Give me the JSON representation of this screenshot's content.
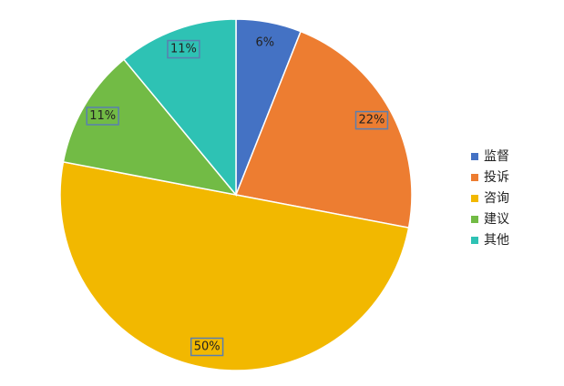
{
  "chart_data": {
    "type": "pie",
    "categories": [
      "监督",
      "投诉",
      "咨询",
      "建议",
      "其他"
    ],
    "values": [
      6,
      22,
      50,
      11,
      11
    ],
    "value_labels": [
      "6%",
      "22%",
      "50%",
      "11%",
      "11%"
    ],
    "colors": [
      "#4472c4",
      "#ed7d31",
      "#f2b800",
      "#72bb45",
      "#2ec2b4"
    ],
    "legend": "right"
  }
}
